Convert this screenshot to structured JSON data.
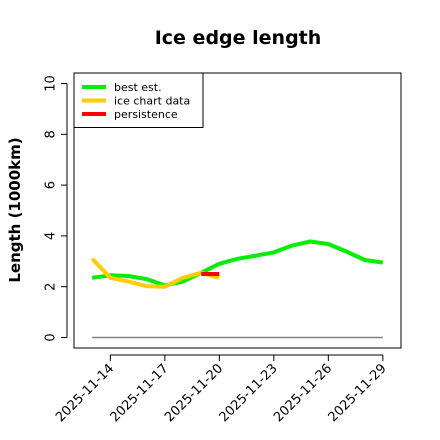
{
  "chart_data": {
    "type": "line",
    "title": "Ice edge length",
    "xlabel": "",
    "ylabel": "Length (1000km)",
    "ylim": [
      0,
      10
    ],
    "yticks": [
      0,
      2,
      4,
      6,
      8,
      10
    ],
    "xlim": [
      "2025-11-12",
      "2025-11-30"
    ],
    "xticks": [
      "2025-11-14",
      "2025-11-17",
      "2025-11-20",
      "2025-11-23",
      "2025-11-26",
      "2025-11-29"
    ],
    "legend_position": "top-left",
    "grid": false,
    "series": [
      {
        "name": "best est.",
        "color": "#00ee00",
        "x": [
          "2025-11-13",
          "2025-11-14",
          "2025-11-15",
          "2025-11-16",
          "2025-11-17",
          "2025-11-18",
          "2025-11-19",
          "2025-11-20",
          "2025-11-21",
          "2025-11-22",
          "2025-11-23",
          "2025-11-24",
          "2025-11-25",
          "2025-11-26",
          "2025-11-27",
          "2025-11-28",
          "2025-11-29"
        ],
        "y": [
          2.35,
          2.45,
          2.42,
          2.3,
          2.05,
          2.2,
          2.55,
          2.9,
          3.1,
          3.22,
          3.35,
          3.62,
          3.78,
          3.68,
          3.38,
          3.05,
          2.95
        ]
      },
      {
        "name": "ice chart data",
        "color": "#ffcc00",
        "x": [
          "2025-11-13",
          "2025-11-14",
          "2025-11-15",
          "2025-11-16",
          "2025-11-17",
          "2025-11-18",
          "2025-11-19",
          "2025-11-20"
        ],
        "y": [
          3.1,
          2.35,
          2.2,
          2.02,
          2.0,
          2.35,
          2.55,
          2.35
        ]
      },
      {
        "name": "persistence",
        "color": "#ff0000",
        "x": [
          "2025-11-19",
          "2025-11-20"
        ],
        "y": [
          2.5,
          2.5
        ]
      },
      {
        "color": "#808080",
        "x": [
          "2025-11-13",
          "2025-11-29"
        ],
        "y": [
          0,
          0
        ]
      }
    ]
  }
}
